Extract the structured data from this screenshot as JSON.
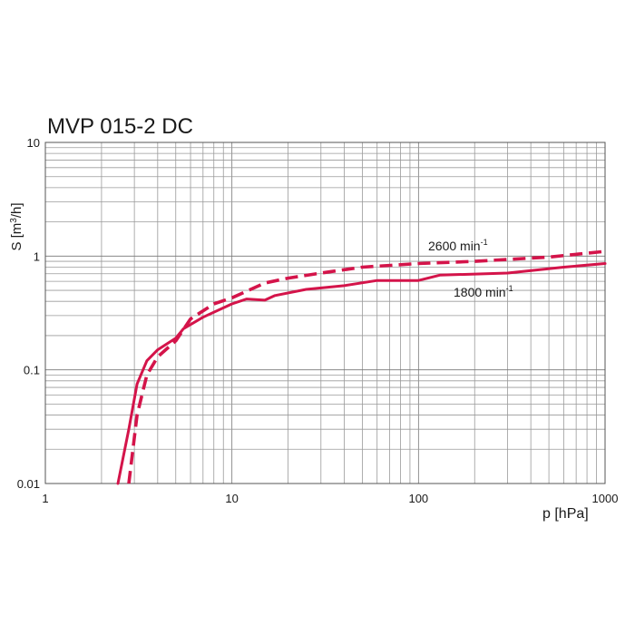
{
  "chart_data": {
    "type": "line",
    "title": "MVP 015-2 DC",
    "xlabel": "p [hPa]",
    "ylabel_main": "S  [m",
    "ylabel_sup": "3",
    "ylabel_tail": "/h]",
    "xscale": "log",
    "yscale": "log",
    "xlim": [
      1,
      1000
    ],
    "ylim": [
      0.01,
      10
    ],
    "grid": true,
    "x_ticks": [
      {
        "value": 1,
        "label": "1"
      },
      {
        "value": 10,
        "label": "10"
      },
      {
        "value": 100,
        "label": "100"
      },
      {
        "value": 1000,
        "label": "1000"
      }
    ],
    "y_ticks": [
      {
        "value": 0.01,
        "label": "0.01"
      },
      {
        "value": 0.1,
        "label": "0.1"
      },
      {
        "value": 1,
        "label": "1"
      },
      {
        "value": 10,
        "label": "10"
      }
    ],
    "line_color": "#d4144a",
    "series": [
      {
        "label_main": "1800 min",
        "label_sup": "-1",
        "style": "solid",
        "x": [
          2.45,
          2.8,
          3.1,
          3.5,
          4.0,
          5.0,
          5.5,
          7.0,
          10.0,
          12.0,
          15.0,
          17.0,
          25.0,
          40.0,
          60.0,
          100.0,
          130.0,
          300.0,
          600.0,
          1000.0
        ],
        "y": [
          0.01,
          0.03,
          0.075,
          0.12,
          0.15,
          0.19,
          0.23,
          0.29,
          0.38,
          0.42,
          0.41,
          0.45,
          0.51,
          0.55,
          0.61,
          0.61,
          0.68,
          0.71,
          0.8,
          0.86
        ]
      },
      {
        "label_main": "2600 min",
        "label_sup": "-1",
        "style": "dashed",
        "x": [
          2.8,
          3.1,
          3.5,
          4.0,
          5.0,
          6.0,
          8.0,
          10.0,
          15.0,
          20.0,
          30.0,
          50.0,
          100.0,
          200.0,
          500.0,
          1000.0
        ],
        "y": [
          0.01,
          0.04,
          0.09,
          0.13,
          0.18,
          0.28,
          0.38,
          0.43,
          0.58,
          0.64,
          0.71,
          0.8,
          0.86,
          0.9,
          0.98,
          1.1
        ]
      }
    ]
  }
}
